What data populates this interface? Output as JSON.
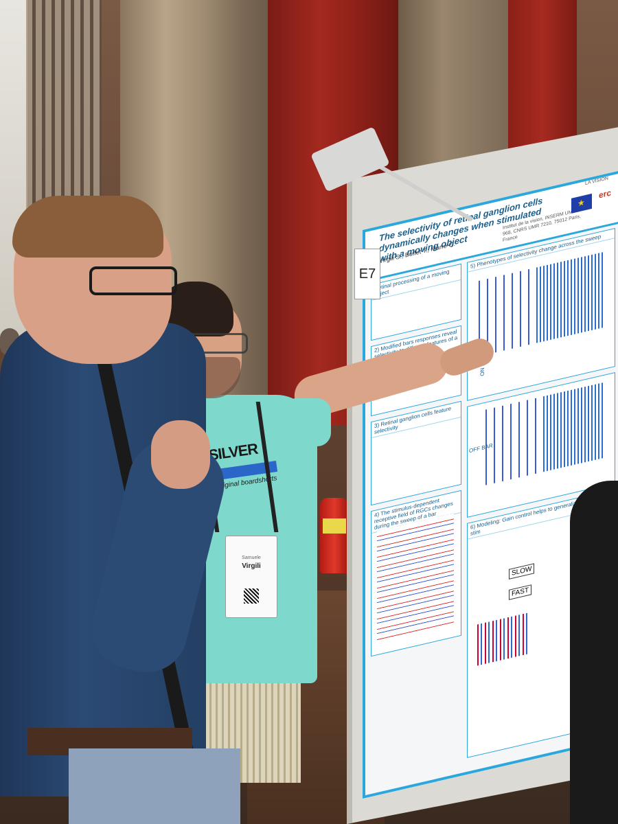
{
  "poster": {
    "board_id": "E7",
    "title": "The selectivity of retinal ganglion cells dynamically changes when stimulated with a moving object",
    "authors": "Virgili S., Buffet T., Marre O.",
    "affiliation": "Institut de la vision, INSERM UMRS 968, CNRS UMR 7210, 75012 Paris, France",
    "logos": [
      "LA VISION",
      "erc"
    ],
    "sections": [
      {
        "heading": "Retinal processing of a moving object"
      },
      {
        "heading": "5) Phenotypes of selectivity change across the sweep"
      },
      {
        "heading": "2) Modified bars responses reveal selectivity to different features of a moving object"
      },
      {
        "heading": "3) Retinal ganglion cells feature selectivity"
      },
      {
        "heading": "4) The stimulus-dependent receptive field of RGCs changes during the sweep of a bar"
      },
      {
        "heading": "6) Modeling: Gain control helps to generalize to moving stim"
      }
    ],
    "labels": [
      "ON BAR",
      "OFF BAR",
      "SLOW",
      "FAST"
    ]
  },
  "badge": {
    "first_name": "Samuele",
    "last_name": "Virgili"
  },
  "shirt_print": {
    "brand": "IKSILVER",
    "tagline": "The original boardshorts co."
  }
}
